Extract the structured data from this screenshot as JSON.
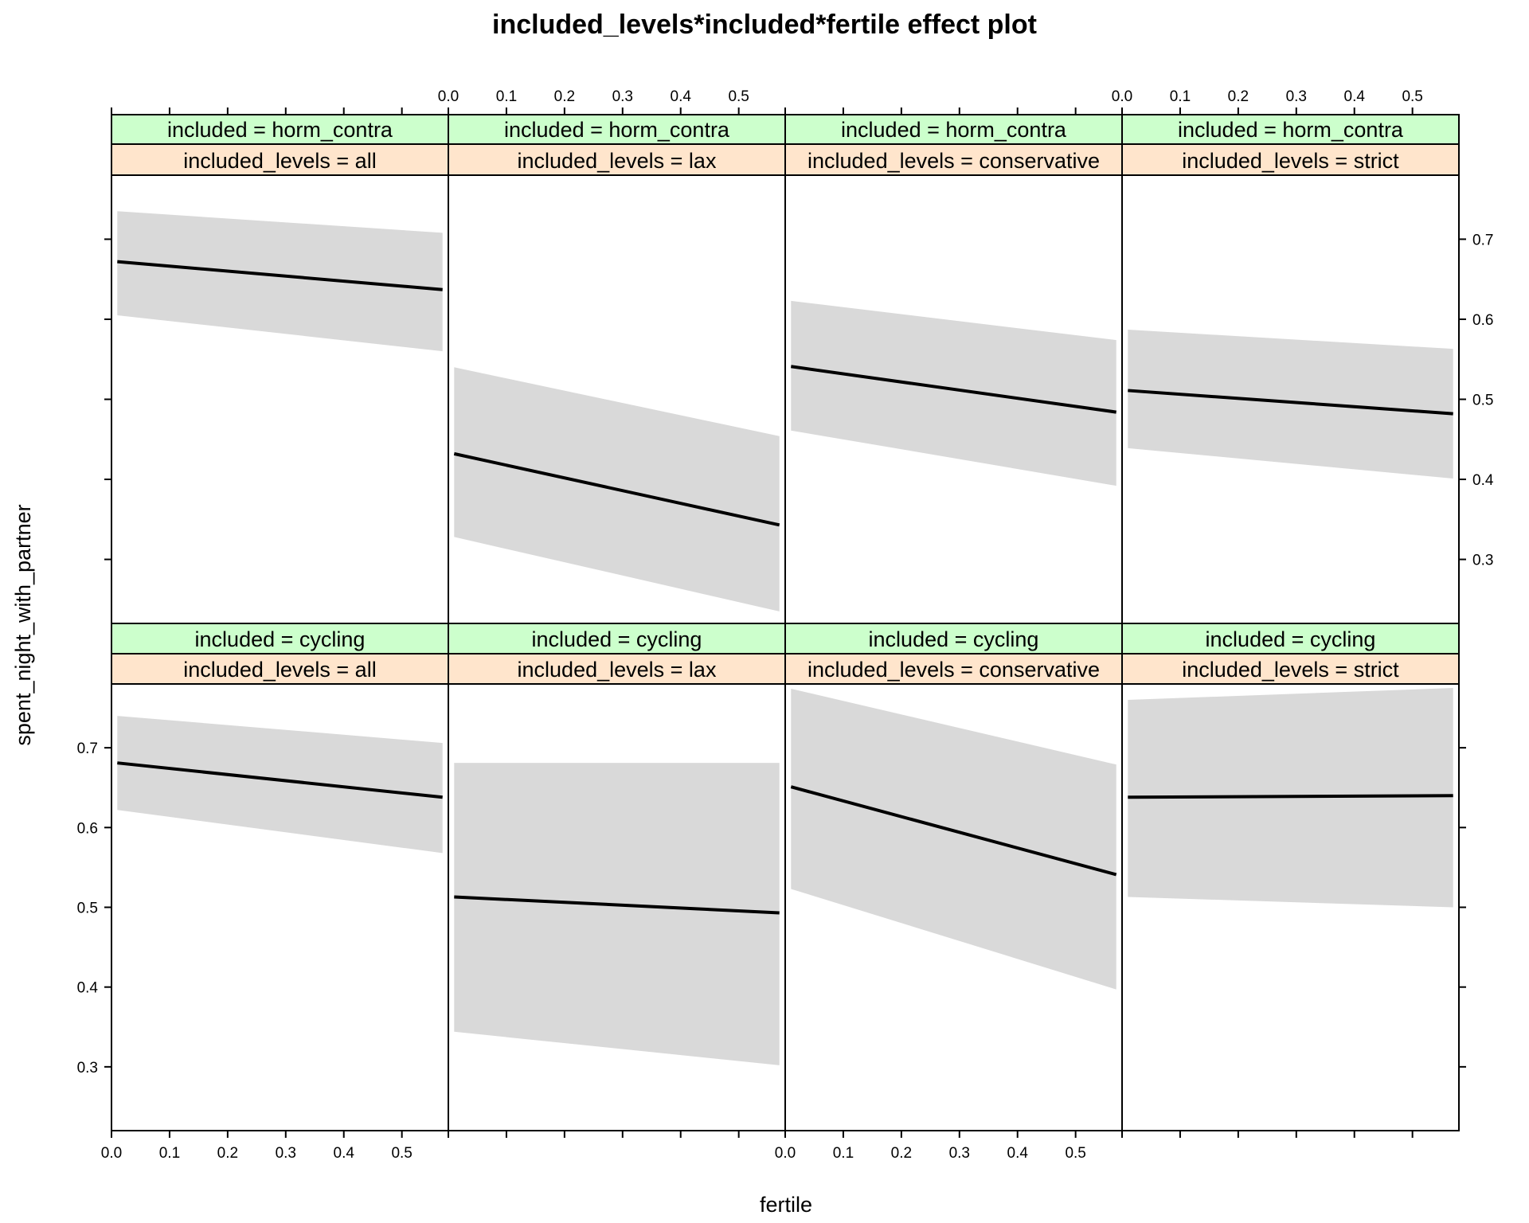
{
  "chart_data": {
    "type": "line",
    "title": "included_levels*included*fertile effect plot",
    "xlabel": "fertile",
    "ylabel": "spent_night_with_partner",
    "x_ticks": [
      "0.0",
      "0.1",
      "0.2",
      "0.3",
      "0.4",
      "0.5"
    ],
    "y_ticks": [
      "0.3",
      "0.4",
      "0.5",
      "0.6",
      "0.7"
    ],
    "xlim": [
      0.0,
      0.58
    ],
    "ylim": [
      0.22,
      0.78
    ],
    "layout": {
      "columns": 4,
      "rows": 2
    },
    "panels": [
      {
        "row": "top",
        "col": 1,
        "included": "included = horm_contra",
        "included_levels": "included_levels = all",
        "x": [
          0.01,
          0.57
        ],
        "fit": [
          0.672,
          0.637
        ],
        "lower": [
          0.605,
          0.56
        ],
        "upper": [
          0.735,
          0.708
        ]
      },
      {
        "row": "top",
        "col": 2,
        "included": "included = horm_contra",
        "included_levels": "included_levels = lax",
        "x": [
          0.01,
          0.57
        ],
        "fit": [
          0.432,
          0.343
        ],
        "lower": [
          0.328,
          0.235
        ],
        "upper": [
          0.54,
          0.454
        ]
      },
      {
        "row": "top",
        "col": 3,
        "included": "included = horm_contra",
        "included_levels": "included_levels = conservative",
        "x": [
          0.01,
          0.57
        ],
        "fit": [
          0.541,
          0.484
        ],
        "lower": [
          0.461,
          0.392
        ],
        "upper": [
          0.623,
          0.574
        ]
      },
      {
        "row": "top",
        "col": 4,
        "included": "included = horm_contra",
        "included_levels": "included_levels = strict",
        "x": [
          0.01,
          0.57
        ],
        "fit": [
          0.511,
          0.482
        ],
        "lower": [
          0.439,
          0.401
        ],
        "upper": [
          0.587,
          0.563
        ]
      },
      {
        "row": "bottom",
        "col": 1,
        "included": "included = cycling",
        "included_levels": "included_levels = all",
        "x": [
          0.01,
          0.57
        ],
        "fit": [
          0.681,
          0.638
        ],
        "lower": [
          0.622,
          0.568
        ],
        "upper": [
          0.74,
          0.706
        ]
      },
      {
        "row": "bottom",
        "col": 2,
        "included": "included = cycling",
        "included_levels": "included_levels = lax",
        "x": [
          0.01,
          0.57
        ],
        "fit": [
          0.513,
          0.493
        ],
        "lower": [
          0.344,
          0.302
        ],
        "upper": [
          0.681,
          0.681
        ]
      },
      {
        "row": "bottom",
        "col": 3,
        "included": "included = cycling",
        "included_levels": "included_levels = conservative",
        "x": [
          0.01,
          0.57
        ],
        "fit": [
          0.651,
          0.541
        ],
        "lower": [
          0.523,
          0.397
        ],
        "upper": [
          0.774,
          0.679
        ]
      },
      {
        "row": "bottom",
        "col": 4,
        "included": "included = cycling",
        "included_levels": "included_levels = strict",
        "x": [
          0.01,
          0.57
        ],
        "fit": [
          0.638,
          0.64
        ],
        "lower": [
          0.513,
          0.5
        ],
        "upper": [
          0.76,
          0.775
        ]
      }
    ],
    "colors": {
      "band": "#d9d9d9",
      "line": "#000000",
      "strip_included": "#ccffcc",
      "strip_levels": "#ffe5cc"
    }
  }
}
